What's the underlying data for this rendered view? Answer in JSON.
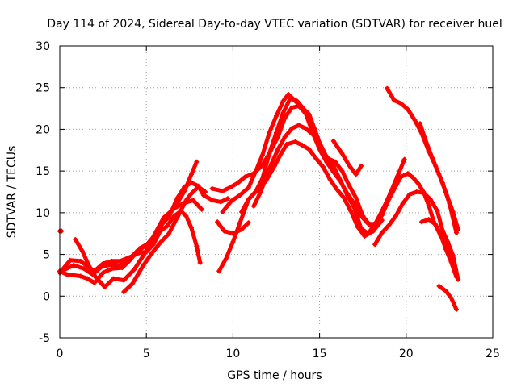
{
  "chart_data": {
    "type": "scatter",
    "title": "Day 114 of 2024, Sidereal Day-to-day VTEC variation (SDTVAR) for receiver huel",
    "xlabel": "GPS time / hours",
    "ylabel": "SDTVAR / TECUs",
    "xlim": [
      0,
      25
    ],
    "ylim": [
      -5,
      30
    ],
    "xticks": [
      "0",
      "5",
      "10",
      "15",
      "20",
      "25"
    ],
    "yticks": [
      "-5",
      "0",
      "5",
      "10",
      "15",
      "20",
      "25",
      "30"
    ],
    "grid": true,
    "marker_color": "#ff0000",
    "series": [
      {
        "name": "s1",
        "points": [
          [
            0,
            3
          ],
          [
            0.4,
            2.6
          ],
          [
            1.2,
            2.4
          ],
          [
            1.6,
            2.1
          ],
          [
            2,
            1.6
          ],
          [
            2.5,
            2.8
          ],
          [
            3,
            3.3
          ],
          [
            3.6,
            3.4
          ],
          [
            4,
            4.2
          ],
          [
            4.5,
            5.4
          ],
          [
            5,
            6.1
          ],
          [
            5.6,
            7.6
          ],
          [
            6.2,
            9.6
          ],
          [
            6.8,
            11.2
          ],
          [
            7.2,
            12.6
          ],
          [
            7.6,
            14.6
          ],
          [
            7.9,
            16.1
          ]
        ]
      },
      {
        "name": "s2",
        "points": [
          [
            0.2,
            3.1
          ],
          [
            0.8,
            3.7
          ],
          [
            1.4,
            3.3
          ],
          [
            1.9,
            2.6
          ],
          [
            2.4,
            3.5
          ],
          [
            3,
            3.8
          ],
          [
            3.5,
            3.7
          ],
          [
            4,
            4.4
          ],
          [
            4.6,
            5.7
          ],
          [
            5.2,
            6.4
          ],
          [
            5.8,
            8.4
          ],
          [
            6.3,
            9.5
          ],
          [
            6.8,
            11.8
          ],
          [
            7.2,
            13.1
          ],
          [
            7.6,
            13.6
          ],
          [
            8,
            13.2
          ],
          [
            8.3,
            12.1
          ],
          [
            8.8,
            11.5
          ],
          [
            9.3,
            11.3
          ],
          [
            9.7,
            11.7
          ]
        ]
      },
      {
        "name": "s3",
        "points": [
          [
            0,
            2.8
          ],
          [
            0.6,
            4.3
          ],
          [
            1.2,
            4.2
          ],
          [
            1.6,
            3.6
          ],
          [
            2,
            3
          ],
          [
            2.5,
            3.9
          ],
          [
            3,
            4.2
          ],
          [
            3.5,
            4.2
          ],
          [
            4.2,
            4.8
          ],
          [
            4.6,
            5.2
          ],
          [
            5,
            5.3
          ],
          [
            5.4,
            6.2
          ],
          [
            5.8,
            7.8
          ],
          [
            6.2,
            8.4
          ],
          [
            6.6,
            9.6
          ],
          [
            7,
            10.2
          ],
          [
            7.3,
            9.6
          ],
          [
            7.6,
            8.2
          ],
          [
            7.9,
            6
          ],
          [
            8.1,
            4
          ]
        ]
      },
      {
        "name": "s4",
        "points": [
          [
            0.9,
            6.8
          ],
          [
            1.3,
            5.4
          ],
          [
            1.7,
            3.6
          ],
          [
            2.1,
            2.2
          ],
          [
            2.6,
            1.1
          ],
          [
            3.1,
            2.1
          ],
          [
            3.7,
            1.9
          ],
          [
            4.3,
            3.2
          ],
          [
            4.9,
            5.1
          ],
          [
            5.5,
            7.5
          ],
          [
            6,
            9.4
          ],
          [
            6.6,
            10.5
          ],
          [
            7.1,
            11.1
          ],
          [
            7.7,
            11.5
          ],
          [
            8.2,
            10.4
          ]
        ]
      },
      {
        "name": "s5",
        "points": [
          [
            3.7,
            0.5
          ],
          [
            4.2,
            1.5
          ],
          [
            4.8,
            3.6
          ],
          [
            5.3,
            5.1
          ],
          [
            5.8,
            6.4
          ],
          [
            6.3,
            7.5
          ],
          [
            6.8,
            9.5
          ],
          [
            7.3,
            11.5
          ],
          [
            7.6,
            12.3
          ],
          [
            8,
            13.1
          ],
          [
            8.4,
            12.5
          ]
        ]
      },
      {
        "name": "s6",
        "points": [
          [
            9.2,
            3
          ],
          [
            9.6,
            4.5
          ],
          [
            10,
            6.5
          ],
          [
            10.4,
            8.8
          ],
          [
            10.9,
            11.6
          ],
          [
            11.4,
            12.7
          ],
          [
            11.9,
            13.8
          ],
          [
            12.4,
            15.6
          ],
          [
            12.7,
            16.8
          ],
          [
            13.1,
            18.2
          ],
          [
            13.6,
            18.5
          ],
          [
            14,
            18.1
          ],
          [
            14.4,
            17.6
          ],
          [
            14.8,
            16.5
          ],
          [
            15.2,
            15.5
          ],
          [
            15.6,
            14
          ],
          [
            16,
            12.8
          ],
          [
            16.4,
            11.8
          ],
          [
            16.8,
            10.2
          ],
          [
            17.2,
            8.3
          ],
          [
            17.6,
            7.2
          ],
          [
            18.1,
            7.8
          ],
          [
            18.6,
            9.1
          ]
        ]
      },
      {
        "name": "s7",
        "points": [
          [
            8.8,
            12.9
          ],
          [
            9.4,
            12.6
          ],
          [
            9.9,
            13.1
          ],
          [
            10.3,
            13.6
          ],
          [
            10.7,
            14.3
          ],
          [
            11.2,
            14.7
          ],
          [
            11.7,
            15.7
          ],
          [
            12.1,
            17.1
          ],
          [
            12.6,
            19.1
          ],
          [
            13,
            21.4
          ],
          [
            13.4,
            22.6
          ],
          [
            13.8,
            22.8
          ],
          [
            14.2,
            21.9
          ],
          [
            14.6,
            19.6
          ],
          [
            15,
            17.6
          ],
          [
            15.4,
            16.1
          ],
          [
            15.8,
            14.9
          ],
          [
            16.2,
            13.8
          ],
          [
            16.6,
            12.3
          ],
          [
            17,
            11.1
          ],
          [
            17.4,
            9.6
          ],
          [
            17.8,
            8.7
          ],
          [
            18.2,
            8.6
          ]
        ]
      },
      {
        "name": "s8",
        "points": [
          [
            9.4,
            10.1
          ],
          [
            9.9,
            11.4
          ],
          [
            10.4,
            12.1
          ],
          [
            10.9,
            13
          ],
          [
            11.3,
            14.9
          ],
          [
            11.7,
            16.9
          ],
          [
            12.1,
            19.6
          ],
          [
            12.5,
            21.6
          ],
          [
            12.9,
            23.4
          ],
          [
            13.2,
            24.2
          ],
          [
            13.6,
            23.4
          ],
          [
            14,
            22.6
          ],
          [
            14.4,
            21.8
          ],
          [
            14.7,
            20.1
          ],
          [
            15,
            18.4
          ],
          [
            15.4,
            16.7
          ],
          [
            15.8,
            15.6
          ],
          [
            16.2,
            13.9
          ],
          [
            16.6,
            12.1
          ],
          [
            17,
            10.6
          ],
          [
            17.4,
            8.1
          ],
          [
            17.8,
            7.5
          ],
          [
            18.2,
            8.6
          ],
          [
            18.7,
            10.6
          ],
          [
            19.1,
            12.4
          ],
          [
            19.5,
            14.4
          ],
          [
            19.9,
            16.4
          ]
        ]
      },
      {
        "name": "s9",
        "points": [
          [
            10.5,
            10.1
          ],
          [
            10.9,
            11.6
          ],
          [
            11.3,
            12.5
          ],
          [
            11.7,
            14.1
          ],
          [
            12.1,
            17.1
          ],
          [
            12.5,
            19.6
          ],
          [
            12.9,
            22
          ],
          [
            13.3,
            23.7
          ],
          [
            13.7,
            23.4
          ],
          [
            14.1,
            22.4
          ],
          [
            14.6,
            20.5
          ],
          [
            15,
            17.8
          ],
          [
            15.5,
            16.5
          ],
          [
            15.9,
            16.1
          ],
          [
            16.3,
            15
          ],
          [
            16.7,
            13.3
          ],
          [
            17.1,
            11.8
          ],
          [
            17.5,
            9.6
          ],
          [
            17.9,
            8.5
          ],
          [
            18.3,
            8.8
          ],
          [
            18.6,
            9.7
          ],
          [
            19,
            11.6
          ],
          [
            19.4,
            13.2
          ],
          [
            19.7,
            14.3
          ],
          [
            20.1,
            14.7
          ],
          [
            20.4,
            14.2
          ],
          [
            20.7,
            13.5
          ],
          [
            21,
            12.5
          ],
          [
            21.3,
            10.9
          ],
          [
            21.6,
            8.9
          ],
          [
            22,
            7.2
          ],
          [
            22.4,
            5.7
          ],
          [
            22.8,
            3.5
          ]
        ]
      },
      {
        "name": "s10",
        "points": [
          [
            9.1,
            8.9
          ],
          [
            9.5,
            7.8
          ],
          [
            10,
            7.5
          ],
          [
            10.5,
            8
          ],
          [
            10.9,
            8.8
          ]
        ]
      },
      {
        "name": "s11",
        "points": [
          [
            11.2,
            10.8
          ],
          [
            11.6,
            12.5
          ],
          [
            12.1,
            15.3
          ],
          [
            12.6,
            17.6
          ],
          [
            13,
            19.1
          ],
          [
            13.4,
            20.1
          ],
          [
            13.8,
            20.5
          ],
          [
            14.2,
            20.1
          ],
          [
            14.6,
            19.4
          ]
        ]
      },
      {
        "name": "s13",
        "points": [
          [
            15.8,
            18.6
          ],
          [
            16.3,
            17.1
          ],
          [
            16.7,
            15.7
          ],
          [
            17.1,
            14.6
          ],
          [
            17.4,
            15.6
          ]
        ]
      },
      {
        "name": "s14",
        "points": [
          [
            18.9,
            24.9
          ],
          [
            19.3,
            23.5
          ],
          [
            19.7,
            23.1
          ],
          [
            20.1,
            22.4
          ],
          [
            20.5,
            21.1
          ],
          [
            20.9,
            19.5
          ],
          [
            21.3,
            17.4
          ],
          [
            21.7,
            15.6
          ],
          [
            22.1,
            13.6
          ],
          [
            22.5,
            11.1
          ],
          [
            22.9,
            7.6
          ]
        ]
      },
      {
        "name": "s15",
        "points": [
          [
            18.2,
            6.2
          ],
          [
            18.6,
            7.6
          ],
          [
            19,
            8.5
          ],
          [
            19.4,
            9.6
          ],
          [
            19.8,
            11.1
          ],
          [
            20.2,
            12.2
          ],
          [
            20.6,
            12.5
          ],
          [
            21,
            12.4
          ],
          [
            21.4,
            11.6
          ],
          [
            21.8,
            10.2
          ],
          [
            22.1,
            7.9
          ],
          [
            22.4,
            6.5
          ],
          [
            22.7,
            4.9
          ],
          [
            23,
            2
          ]
        ]
      },
      {
        "name": "s16",
        "points": [
          [
            20.8,
            20.7
          ],
          [
            21.1,
            18.8
          ],
          [
            21.5,
            16.6
          ],
          [
            21.9,
            14.6
          ],
          [
            22.3,
            12.4
          ],
          [
            22.7,
            10.1
          ],
          [
            23,
            8
          ]
        ]
      },
      {
        "name": "s17",
        "points": [
          [
            21.9,
            1.2
          ],
          [
            22.3,
            0.6
          ],
          [
            22.6,
            -0.2
          ],
          [
            22.9,
            -1.6
          ]
        ]
      },
      {
        "name": "s18",
        "points": [
          [
            20.9,
            8.9
          ],
          [
            21.3,
            9.2
          ],
          [
            21.7,
            8.6
          ],
          [
            22,
            7.3
          ],
          [
            22.3,
            5.6
          ],
          [
            22.6,
            4.1
          ],
          [
            22.9,
            2.3
          ]
        ]
      },
      {
        "name": "s19",
        "points": [
          [
            0,
            7.8
          ],
          [
            0.1,
            7.8
          ]
        ]
      }
    ]
  }
}
